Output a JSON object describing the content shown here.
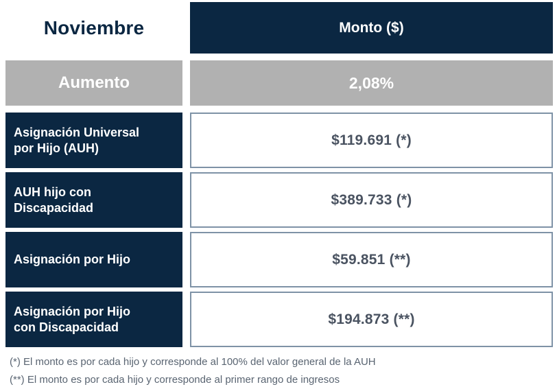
{
  "colors": {
    "navy": "#0b2742",
    "gray": "#b1b1b1",
    "border": "#7e92a6",
    "amount": "#4a5361",
    "note": "#596471",
    "white": "#ffffff"
  },
  "table": {
    "month_header": "Noviembre",
    "amount_header": "Monto ($)",
    "increase": {
      "label": "Aumento",
      "value": "2,08%"
    },
    "rows": [
      {
        "label": "Asignación Universal\npor Hijo (AUH)",
        "value": "$119.691 (*)"
      },
      {
        "label": "AUH hijo con\nDiscapacidad",
        "value": "$389.733 (*)"
      },
      {
        "label": "Asignación por Hijo",
        "value": "$59.851 (**)"
      },
      {
        "label": "Asignación por Hijo\ncon Discapacidad",
        "value": "$194.873 (**)"
      }
    ]
  },
  "footnotes": [
    "(*) El monto es por cada hijo y corresponde al 100% del valor general de la AUH",
    "(**) El monto es por cada hijo y corresponde al primer rango de ingresos"
  ],
  "chart_data": {
    "type": "table",
    "title": "Noviembre",
    "columns": [
      "Noviembre",
      "Monto ($)"
    ],
    "rows": [
      [
        "Aumento",
        "2,08%"
      ],
      [
        "Asignación Universal por Hijo (AUH)",
        "$119.691 (*)"
      ],
      [
        "AUH hijo con Discapacidad",
        "$389.733 (*)"
      ],
      [
        "Asignación por Hijo",
        "$59.851 (**)"
      ],
      [
        "Asignación por Hijo con Discapacidad",
        "$194.873 (**)"
      ]
    ],
    "notes": [
      "(*) El monto es por cada hijo y corresponde al 100% del valor general de la AUH",
      "(**) El monto es por cada hijo y corresponde al primer rango de ingresos"
    ]
  }
}
